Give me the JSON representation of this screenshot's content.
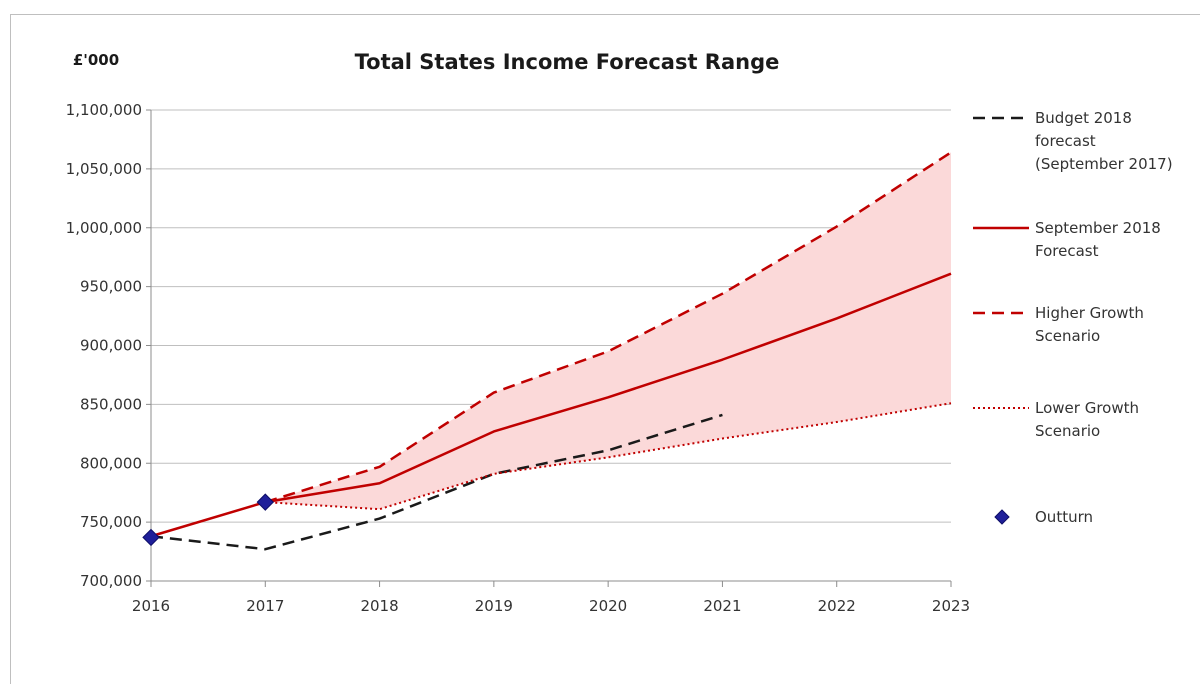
{
  "chart_data": {
    "type": "line",
    "title": "Total States Income Forecast Range",
    "ylabel": "£'000",
    "xlabel": "",
    "x": [
      2016,
      2017,
      2018,
      2019,
      2020,
      2021,
      2022,
      2023
    ],
    "xlim": [
      2016,
      2023
    ],
    "ylim": [
      700000,
      1100000
    ],
    "yticks": [
      700000,
      750000,
      800000,
      850000,
      900000,
      950000,
      1000000,
      1050000,
      1100000
    ],
    "ytick_labels": [
      "700,000",
      "750,000",
      "800,000",
      "850,000",
      "900,000",
      "950,000",
      "1,000,000",
      "1,050,000",
      "1,100,000"
    ],
    "xtick_labels": [
      "2016",
      "2017",
      "2018",
      "2019",
      "2020",
      "2021",
      "2022",
      "2023"
    ],
    "grid": true,
    "legend_position": "right",
    "shaded_range": {
      "between": [
        "Lower Growth Scenario",
        "Higher Growth Scenario"
      ],
      "color": "#fbd9d9"
    },
    "series": [
      {
        "name": "Budget 2018 forecast (September 2017)",
        "legend_lines": [
          "Budget 2018",
          "forecast",
          "(September 2017)"
        ],
        "style": "dashed",
        "color": "#1a1a1a",
        "points": [
          [
            2016,
            738000
          ],
          [
            2017,
            727000
          ],
          [
            2018,
            753000
          ],
          [
            2019,
            791000
          ],
          [
            2020,
            811000
          ],
          [
            2021,
            841000
          ]
        ]
      },
      {
        "name": "September 2018 Forecast",
        "legend_lines": [
          "September 2018",
          "Forecast"
        ],
        "style": "solid",
        "color": "#c00000",
        "points": [
          [
            2016,
            738000
          ],
          [
            2017,
            767000
          ],
          [
            2018,
            783000
          ],
          [
            2019,
            827000
          ],
          [
            2020,
            856000
          ],
          [
            2021,
            888000
          ],
          [
            2022,
            923000
          ],
          [
            2023,
            961000
          ]
        ]
      },
      {
        "name": "Higher Growth Scenario",
        "legend_lines": [
          "Higher Growth",
          "Scenario"
        ],
        "style": "dashed",
        "color": "#c00000",
        "points": [
          [
            2017,
            767000
          ],
          [
            2018,
            797000
          ],
          [
            2019,
            860000
          ],
          [
            2020,
            895000
          ],
          [
            2021,
            944000
          ],
          [
            2022,
            1001000
          ],
          [
            2023,
            1064000
          ]
        ]
      },
      {
        "name": "Lower Growth Scenario",
        "legend_lines": [
          "Lower Growth",
          "Scenario"
        ],
        "style": "dotted",
        "color": "#c00000",
        "points": [
          [
            2017,
            767000
          ],
          [
            2018,
            761000
          ],
          [
            2019,
            791000
          ],
          [
            2020,
            805000
          ],
          [
            2021,
            821000
          ],
          [
            2022,
            835000
          ],
          [
            2023,
            851000
          ]
        ]
      },
      {
        "name": "Outturn",
        "legend_lines": [
          "Outturn"
        ],
        "style": "marker",
        "color": "#1f1f99",
        "points": [
          [
            2016,
            737000
          ],
          [
            2017,
            767000
          ]
        ]
      }
    ]
  }
}
